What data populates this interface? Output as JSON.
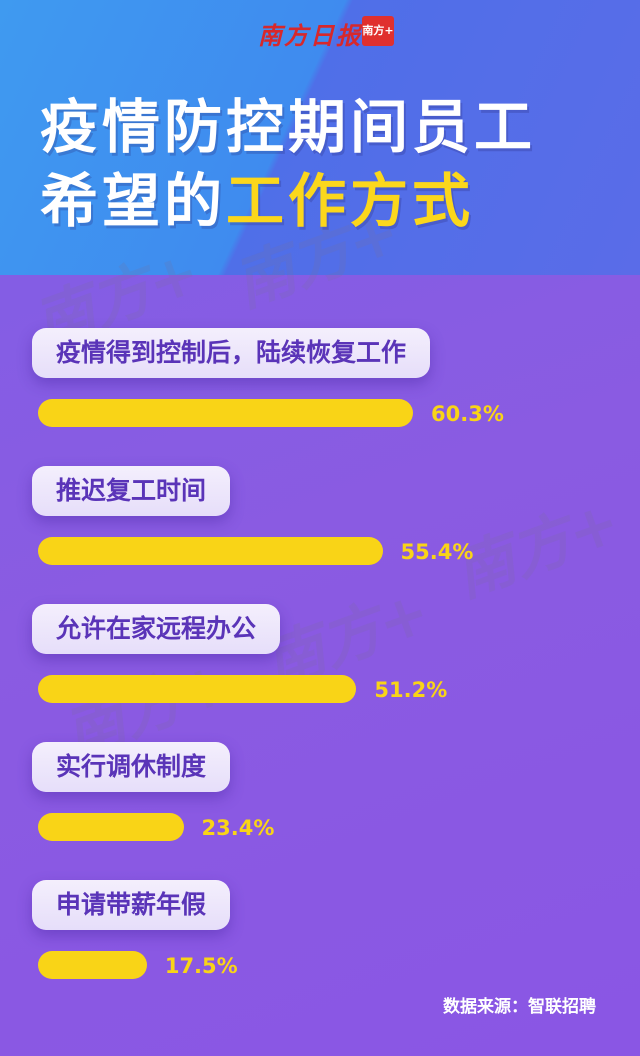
{
  "brand": {
    "logo_text": "南方日报",
    "badge_text": "南方+"
  },
  "header": {
    "title_line1": "疫情防控期间员工",
    "title_line2_white": "希望的",
    "title_line2_highlight": "工作方式"
  },
  "colors": {
    "bar": "#f9d417",
    "label_text": "#5a34b8",
    "highlight": "#fbd71c",
    "background": "#8a5be2"
  },
  "chart_data": {
    "type": "bar",
    "orientation": "horizontal",
    "title": "疫情防控期间员工希望的工作方式",
    "categories": [
      "疫情得到控制后，陆续恢复工作",
      "推迟复工时间",
      "允许在家远程办公",
      "实行调休制度",
      "申请带薪年假"
    ],
    "values": [
      60.3,
      55.4,
      51.2,
      23.4,
      17.5
    ],
    "value_labels": [
      "60.3%",
      "55.4%",
      "51.2%",
      "23.4%",
      "17.5%"
    ],
    "unit": "%",
    "grid": false
  },
  "footer": {
    "source": "数据来源：智联招聘"
  }
}
